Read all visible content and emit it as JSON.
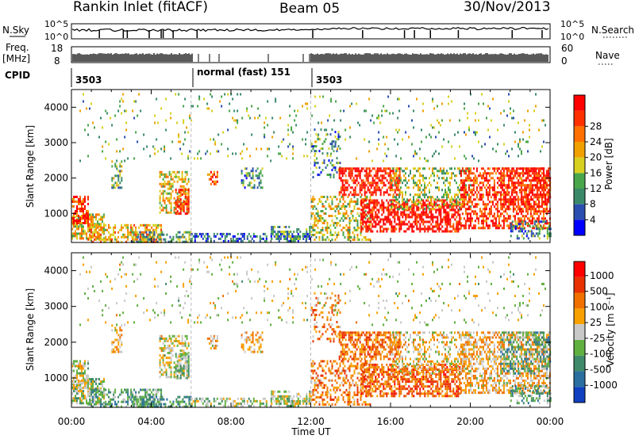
{
  "header": {
    "station": "Rankin Inlet (fitACF)",
    "beam": "Beam 05",
    "date": "30/Nov/2013"
  },
  "top_panels": {
    "nsky_label": "N.Sky",
    "nsky_ticks": [
      "10^5",
      "10^0"
    ],
    "nsearch_label": "N.Search",
    "nsearch_ticks": [
      "10^5",
      "10^0"
    ],
    "freq_label": "Freq.",
    "freq_unit": "[MHz]",
    "freq_ticks": [
      "18",
      "8"
    ],
    "nave_label": "Nave",
    "nave_ticks": [
      "60",
      "0"
    ],
    "cpid_label": "CPID",
    "cpid_segments": [
      "3503",
      "normal (fast) 151",
      "3503"
    ]
  },
  "colors": {
    "power_scale": [
      "#0000ff",
      "#2b4fb0",
      "#3a8a6a",
      "#49a64a",
      "#d8d020",
      "#f0a000",
      "#ff7000",
      "#ff3000",
      "#ff0000"
    ],
    "velocity_scale": [
      "#1040c0",
      "#2a6fa0",
      "#3f8a6a",
      "#60b040",
      "#c8c8c8",
      "#f7a000",
      "#f07000",
      "#e83000",
      "#ff0000"
    ]
  },
  "chart_data": [
    {
      "type": "heatmap",
      "panel": "power",
      "ylabel": "Slant Range [km]",
      "xlabel": "",
      "ylim": [
        180,
        4500
      ],
      "y_ticks": [
        "1000",
        "2000",
        "3000",
        "4000"
      ],
      "colorbar_label": "Power [dB]",
      "colorbar_ticks": [
        "4",
        "8",
        "12",
        "16",
        "20",
        "24",
        "28"
      ]
    },
    {
      "type": "heatmap",
      "panel": "velocity",
      "ylabel": "Slant Range [km]",
      "xlabel": "Time UT",
      "ylim": [
        180,
        4500
      ],
      "y_ticks": [
        "1000",
        "2000",
        "3000",
        "4000"
      ],
      "x_ticks": [
        "00:00",
        "04:00",
        "08:00",
        "12:00",
        "16:00",
        "20:00",
        "00:00"
      ],
      "colorbar_label": "Velocity [m s⁻¹]",
      "colorbar_ticks": [
        "1000",
        "500",
        "100",
        "25",
        "-25",
        "-100",
        "-500",
        "-1000"
      ]
    }
  ]
}
